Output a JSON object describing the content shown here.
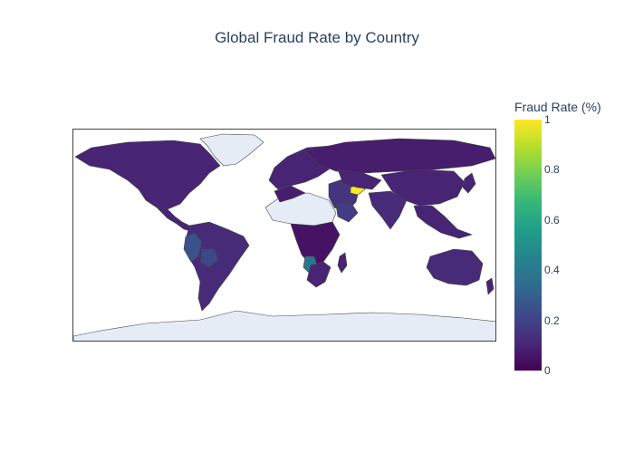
{
  "title": "Global Fraud Rate by Country",
  "colorbar": {
    "title": "Fraud Rate (%)",
    "ticks": [
      "1",
      "0.8",
      "0.6",
      "0.4",
      "0.2",
      "0"
    ],
    "colorscale": [
      "#440154",
      "#482878",
      "#3e4989",
      "#31688e",
      "#26828e",
      "#1f9e89",
      "#35b779",
      "#6ece58",
      "#b5de2b",
      "#fde725"
    ]
  },
  "map": {
    "projection": "equirectangular",
    "land_color": "#e5ecf6",
    "border_color": "#444444",
    "regions": [
      {
        "name": "north-america",
        "value": 0.1
      },
      {
        "name": "greenland",
        "value": null
      },
      {
        "name": "central-america",
        "value": 0.1
      },
      {
        "name": "south-america",
        "value": 0.12
      },
      {
        "name": "peru",
        "value": 0.25
      },
      {
        "name": "bolivia",
        "value": 0.22
      },
      {
        "name": "europe",
        "value": 0.1
      },
      {
        "name": "north-africa",
        "value": null
      },
      {
        "name": "west-africa",
        "value": 0.08
      },
      {
        "name": "central-africa",
        "value": 0.05
      },
      {
        "name": "namibia",
        "value": 0.4
      },
      {
        "name": "southern-africa",
        "value": 0.1
      },
      {
        "name": "madagascar",
        "value": 0.1
      },
      {
        "name": "middle-east",
        "value": 0.15
      },
      {
        "name": "saudi-arabia",
        "value": 0.18
      },
      {
        "name": "turkmenistan",
        "value": 1.0
      },
      {
        "name": "russia",
        "value": 0.08
      },
      {
        "name": "central-asia",
        "value": 0.1
      },
      {
        "name": "south-asia",
        "value": 0.12
      },
      {
        "name": "china",
        "value": 0.1
      },
      {
        "name": "southeast-asia",
        "value": 0.1
      },
      {
        "name": "japan",
        "value": 0.1
      },
      {
        "name": "australia",
        "value": 0.12
      },
      {
        "name": "new-zealand",
        "value": 0.1
      },
      {
        "name": "antarctica",
        "value": null
      }
    ]
  }
}
